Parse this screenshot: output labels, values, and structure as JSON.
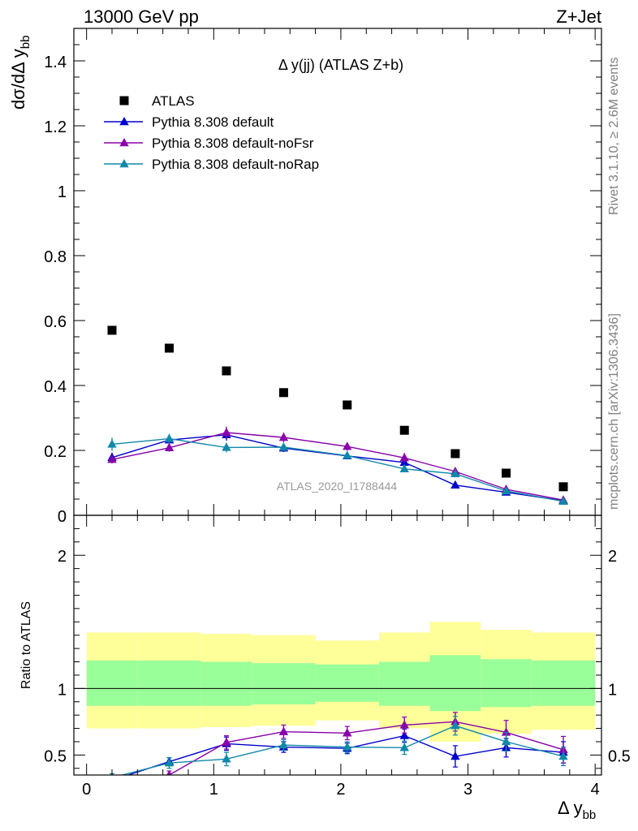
{
  "header": {
    "left": "13000 GeV pp",
    "right": "Z+Jet"
  },
  "side_labels": {
    "rivet": "Rivet 3.1.10, ≥ 2.6M events",
    "mcplots": "mcplots.cern.ch [arXiv:1306.3436]"
  },
  "watermark": "ATLAS_2020_I1788444",
  "chart_data": [
    {
      "type": "scatter",
      "title": "Δ y(jj) (ATLAS Z+b)",
      "xlabel": "Δ y",
      "xlabel_sub": "bb",
      "ylabel": "dσ/dΔ y",
      "ylabel_sub": "bb",
      "xlim": [
        -0.1,
        4.05
      ],
      "ylim": [
        0,
        1.5
      ],
      "yticks": [
        0,
        0.2,
        0.4,
        0.6,
        0.8,
        1,
        1.2,
        1.4
      ],
      "ytick_labels": [
        "0",
        "0.2",
        "0.4",
        "0.6",
        "0.8",
        "1",
        "1.2",
        "1.4"
      ],
      "legend_position": "top-left",
      "x": [
        0.2,
        0.65,
        1.1,
        1.55,
        2.05,
        2.5,
        2.9,
        3.3,
        3.75
      ],
      "series": [
        {
          "name": "ATLAS",
          "marker": "square",
          "color": "#000000",
          "values": [
            0.57,
            0.515,
            0.445,
            0.378,
            0.34,
            0.262,
            0.19,
            0.13,
            0.088
          ]
        },
        {
          "name": "Pythia 8.308 default",
          "marker": "triangle",
          "color": "#0000cc",
          "values": [
            0.178,
            0.232,
            0.248,
            0.207,
            0.183,
            0.163,
            0.093,
            0.071,
            0.045
          ],
          "errors": [
            0.015,
            0.012,
            0.018,
            0.012,
            0.01,
            0.012,
            0.01,
            0.007,
            0.005
          ]
        },
        {
          "name": "Pythia 8.308 default-noFsr",
          "marker": "triangle",
          "color": "#8800aa",
          "values": [
            0.172,
            0.208,
            0.255,
            0.24,
            0.212,
            0.177,
            0.135,
            0.08,
            0.047
          ],
          "errors": [
            0.012,
            0.012,
            0.018,
            0.015,
            0.013,
            0.015,
            0.012,
            0.008,
            0.005
          ]
        },
        {
          "name": "Pythia 8.308 default-noRap",
          "marker": "triangle",
          "color": "#1188aa",
          "values": [
            0.219,
            0.236,
            0.209,
            0.21,
            0.184,
            0.143,
            0.128,
            0.075,
            0.043
          ],
          "errors": [
            0.02,
            0.015,
            0.015,
            0.012,
            0.01,
            0.01,
            0.01,
            0.007,
            0.005
          ]
        }
      ]
    },
    {
      "type": "scatter",
      "ylabel": "Ratio to ATLAS",
      "xlim": [
        -0.1,
        4.05
      ],
      "ylim": [
        0.35,
        2.3
      ],
      "xticks": [
        0,
        1,
        2,
        3,
        4
      ],
      "xtick_labels": [
        "0",
        "1",
        "2",
        "3",
        "4"
      ],
      "yticks": [
        0.5,
        1,
        2
      ],
      "ytick_labels": [
        "0.5",
        "1",
        "2"
      ],
      "reference_line": 1,
      "bins": [
        0,
        0.4,
        0.9,
        1.3,
        1.8,
        2.3,
        2.7,
        3.1,
        3.5,
        4.0
      ],
      "band_inner": [
        [
          0.87,
          1.21
        ],
        [
          0.87,
          1.21
        ],
        [
          0.87,
          1.2
        ],
        [
          0.88,
          1.19
        ],
        [
          0.9,
          1.18
        ],
        [
          0.87,
          1.2
        ],
        [
          0.83,
          1.25
        ],
        [
          0.86,
          1.22
        ],
        [
          0.87,
          1.21
        ]
      ],
      "band_outer": [
        [
          0.7,
          1.42
        ],
        [
          0.7,
          1.42
        ],
        [
          0.71,
          1.41
        ],
        [
          0.72,
          1.4
        ],
        [
          0.76,
          1.36
        ],
        [
          0.7,
          1.42
        ],
        [
          0.6,
          1.5
        ],
        [
          0.66,
          1.44
        ],
        [
          0.69,
          1.42
        ]
      ],
      "band_colors": {
        "inner": "#99ff99",
        "outer": "#ffff99"
      },
      "x": [
        0.2,
        0.65,
        1.1,
        1.55,
        2.05,
        2.5,
        2.9,
        3.3,
        3.75
      ],
      "series": [
        {
          "name": "Pythia 8.308 default",
          "color": "#0000cc",
          "values": [
            0.31,
            0.45,
            0.585,
            0.56,
            0.55,
            0.645,
            0.49,
            0.555,
            0.52
          ],
          "errors": [
            0.03,
            0.03,
            0.05,
            0.04,
            0.04,
            0.05,
            0.08,
            0.07,
            0.08
          ]
        },
        {
          "name": "Pythia 8.308 default-noFsr",
          "color": "#8800aa",
          "values": [
            0.29,
            0.35,
            0.595,
            0.675,
            0.665,
            0.725,
            0.75,
            0.67,
            0.54
          ],
          "errors": [
            0.03,
            0.03,
            0.05,
            0.05,
            0.05,
            0.06,
            0.07,
            0.09,
            0.1
          ]
        },
        {
          "name": "Pythia 8.308 default-noRap",
          "color": "#1188aa",
          "values": [
            0.33,
            0.44,
            0.47,
            0.575,
            0.56,
            0.555,
            0.72,
            0.6,
            0.49
          ],
          "errors": [
            0.03,
            0.04,
            0.05,
            0.04,
            0.04,
            0.05,
            0.07,
            0.07,
            0.07
          ]
        }
      ]
    }
  ]
}
